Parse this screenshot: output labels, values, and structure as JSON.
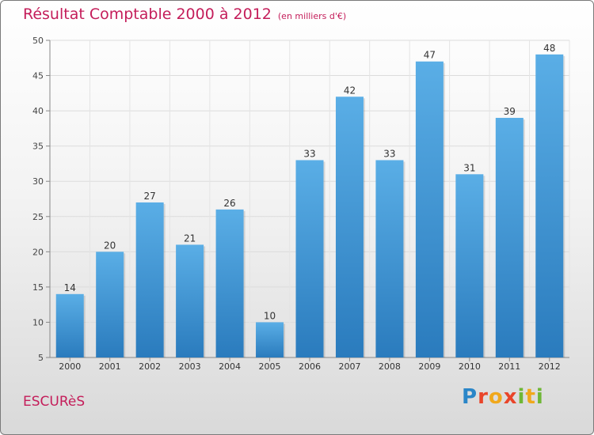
{
  "title": "Résultat Comptable 2000 à 2012",
  "unit_note": "(en milliers d'€)",
  "commune": "ESCURèS",
  "logo": {
    "p": "P",
    "r": "r",
    "o": "o",
    "x": "x",
    "i1": "i",
    "t": "t",
    "i2": "i",
    "text": "Proxiti"
  },
  "colors": {
    "title": "#c41d5a",
    "bar_top": "#5aaee6",
    "bar_bottom": "#2a7bbd"
  },
  "chart_data": {
    "type": "bar",
    "title": "Résultat Comptable 2000 à 2012",
    "xlabel": "",
    "ylabel": "",
    "categories": [
      "2000",
      "2001",
      "2002",
      "2003",
      "2004",
      "2005",
      "2006",
      "2007",
      "2008",
      "2009",
      "2010",
      "2011",
      "2012"
    ],
    "values": [
      14,
      20,
      27,
      21,
      26,
      10,
      33,
      42,
      33,
      47,
      31,
      39,
      48
    ],
    "ylim": [
      5,
      50
    ],
    "yticks": [
      5,
      10,
      15,
      20,
      25,
      30,
      35,
      40,
      45,
      50
    ],
    "grid": true
  }
}
